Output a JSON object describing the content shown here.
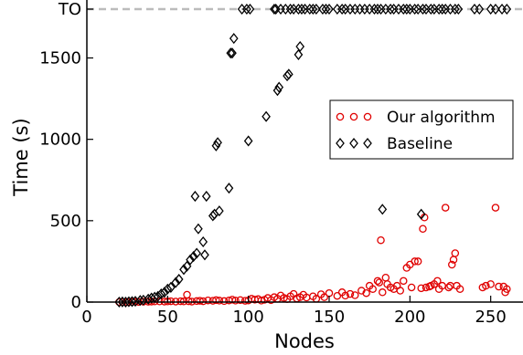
{
  "chart_data": {
    "type": "scatter",
    "xlabel": "Nodes",
    "ylabel": "Time (s)",
    "xlim": [
      0,
      270
    ],
    "ylim": [
      0,
      1800
    ],
    "x_ticks": [
      0,
      50,
      100,
      150,
      200,
      250
    ],
    "y_ticks": [
      {
        "value": 0,
        "label": "0"
      },
      {
        "value": 500,
        "label": "500"
      },
      {
        "value": 1000,
        "label": "1000"
      },
      {
        "value": 1500,
        "label": "1500"
      },
      {
        "value": 1800,
        "label": "TO"
      }
    ],
    "timeout_line": {
      "value": 1800,
      "color": "#bbbbbb",
      "style": "dashed"
    },
    "legend": {
      "placement": "center-right"
    },
    "grid": false,
    "series": [
      {
        "name": "Our algorithm",
        "marker": "circle",
        "color": "#e00000",
        "points": [
          [
            20,
            0
          ],
          [
            22,
            0
          ],
          [
            25,
            0
          ],
          [
            28,
            1
          ],
          [
            30,
            2
          ],
          [
            32,
            1
          ],
          [
            35,
            2
          ],
          [
            38,
            2
          ],
          [
            40,
            3
          ],
          [
            42,
            4
          ],
          [
            45,
            4
          ],
          [
            48,
            3
          ],
          [
            50,
            4
          ],
          [
            52,
            5
          ],
          [
            55,
            3
          ],
          [
            58,
            5
          ],
          [
            60,
            4
          ],
          [
            62,
            45
          ],
          [
            63,
            5
          ],
          [
            65,
            3
          ],
          [
            68,
            6
          ],
          [
            70,
            8
          ],
          [
            72,
            5
          ],
          [
            75,
            10
          ],
          [
            78,
            8
          ],
          [
            80,
            12
          ],
          [
            82,
            9
          ],
          [
            85,
            6
          ],
          [
            88,
            10
          ],
          [
            90,
            15
          ],
          [
            92,
            9
          ],
          [
            95,
            12
          ],
          [
            98,
            8
          ],
          [
            100,
            10
          ],
          [
            102,
            20
          ],
          [
            104,
            15
          ],
          [
            106,
            18
          ],
          [
            108,
            9
          ],
          [
            110,
            14
          ],
          [
            112,
            25
          ],
          [
            114,
            12
          ],
          [
            116,
            30
          ],
          [
            118,
            20
          ],
          [
            120,
            40
          ],
          [
            122,
            25
          ],
          [
            124,
            18
          ],
          [
            126,
            35
          ],
          [
            128,
            50
          ],
          [
            130,
            22
          ],
          [
            132,
            30
          ],
          [
            134,
            45
          ],
          [
            136,
            28
          ],
          [
            140,
            35
          ],
          [
            142,
            20
          ],
          [
            145,
            48
          ],
          [
            147,
            30
          ],
          [
            150,
            55
          ],
          [
            155,
            38
          ],
          [
            158,
            60
          ],
          [
            160,
            40
          ],
          [
            163,
            50
          ],
          [
            166,
            42
          ],
          [
            170,
            70
          ],
          [
            173,
            55
          ],
          [
            175,
            100
          ],
          [
            177,
            80
          ],
          [
            180,
            130
          ],
          [
            181,
            120
          ],
          [
            182,
            380
          ],
          [
            183,
            60
          ],
          [
            185,
            150
          ],
          [
            186,
            110
          ],
          [
            188,
            90
          ],
          [
            190,
            80
          ],
          [
            192,
            100
          ],
          [
            194,
            70
          ],
          [
            196,
            130
          ],
          [
            198,
            210
          ],
          [
            200,
            230
          ],
          [
            201,
            90
          ],
          [
            203,
            250
          ],
          [
            205,
            250
          ],
          [
            207,
            85
          ],
          [
            208,
            450
          ],
          [
            209,
            520
          ],
          [
            210,
            90
          ],
          [
            212,
            95
          ],
          [
            213,
            100
          ],
          [
            215,
            110
          ],
          [
            217,
            130
          ],
          [
            218,
            80
          ],
          [
            220,
            100
          ],
          [
            222,
            580
          ],
          [
            224,
            90
          ],
          [
            225,
            100
          ],
          [
            226,
            230
          ],
          [
            227,
            260
          ],
          [
            228,
            300
          ],
          [
            229,
            100
          ],
          [
            231,
            80
          ],
          [
            245,
            90
          ],
          [
            247,
            100
          ],
          [
            250,
            110
          ],
          [
            253,
            580
          ],
          [
            255,
            95
          ],
          [
            258,
            95
          ],
          [
            259,
            60
          ],
          [
            260,
            80
          ]
        ]
      },
      {
        "name": "Baseline",
        "marker": "diamond",
        "color": "#000000",
        "points": [
          [
            20,
            0
          ],
          [
            22,
            1
          ],
          [
            24,
            0
          ],
          [
            26,
            2
          ],
          [
            28,
            3
          ],
          [
            30,
            5
          ],
          [
            33,
            10
          ],
          [
            35,
            12
          ],
          [
            38,
            18
          ],
          [
            40,
            25
          ],
          [
            42,
            30
          ],
          [
            44,
            35
          ],
          [
            46,
            50
          ],
          [
            48,
            60
          ],
          [
            50,
            80
          ],
          [
            52,
            90
          ],
          [
            55,
            120
          ],
          [
            57,
            140
          ],
          [
            60,
            200
          ],
          [
            62,
            220
          ],
          [
            64,
            260
          ],
          [
            66,
            280
          ],
          [
            67,
            650
          ],
          [
            68,
            300
          ],
          [
            69,
            450
          ],
          [
            72,
            370
          ],
          [
            73,
            290
          ],
          [
            74,
            650
          ],
          [
            78,
            530
          ],
          [
            79,
            540
          ],
          [
            80,
            960
          ],
          [
            81,
            980
          ],
          [
            82,
            560
          ],
          [
            88,
            700
          ],
          [
            89,
            1530
          ],
          [
            90,
            1530
          ],
          [
            91,
            1620
          ],
          [
            100,
            990
          ],
          [
            111,
            1140
          ],
          [
            118,
            1300
          ],
          [
            119,
            1320
          ],
          [
            124,
            1390
          ],
          [
            125,
            1400
          ],
          [
            131,
            1520
          ],
          [
            132,
            1570
          ],
          [
            133,
            1800
          ],
          [
            183,
            570
          ],
          [
            207,
            540
          ],
          [
            96,
            1800
          ],
          [
            99,
            1800
          ],
          [
            101,
            1800
          ],
          [
            116,
            1800
          ],
          [
            117,
            1800
          ],
          [
            120,
            1800
          ],
          [
            123,
            1800
          ],
          [
            126,
            1800
          ],
          [
            128,
            1800
          ],
          [
            131,
            1800
          ],
          [
            135,
            1800
          ],
          [
            138,
            1800
          ],
          [
            140,
            1800
          ],
          [
            142,
            1800
          ],
          [
            146,
            1800
          ],
          [
            148,
            1800
          ],
          [
            150,
            1800
          ],
          [
            155,
            1800
          ],
          [
            158,
            1800
          ],
          [
            160,
            1800
          ],
          [
            163,
            1800
          ],
          [
            166,
            1800
          ],
          [
            169,
            1800
          ],
          [
            172,
            1800
          ],
          [
            175,
            1800
          ],
          [
            178,
            1800
          ],
          [
            180,
            1800
          ],
          [
            182,
            1800
          ],
          [
            185,
            1800
          ],
          [
            188,
            1800
          ],
          [
            190,
            1800
          ],
          [
            193,
            1800
          ],
          [
            196,
            1800
          ],
          [
            198,
            1800
          ],
          [
            200,
            1800
          ],
          [
            203,
            1800
          ],
          [
            205,
            1800
          ],
          [
            208,
            1800
          ],
          [
            210,
            1800
          ],
          [
            213,
            1800
          ],
          [
            215,
            1800
          ],
          [
            218,
            1800
          ],
          [
            220,
            1800
          ],
          [
            222,
            1800
          ],
          [
            225,
            1800
          ],
          [
            228,
            1800
          ],
          [
            230,
            1800
          ],
          [
            240,
            1800
          ],
          [
            243,
            1800
          ],
          [
            250,
            1800
          ],
          [
            253,
            1800
          ],
          [
            257,
            1800
          ],
          [
            260,
            1800
          ]
        ]
      }
    ]
  }
}
